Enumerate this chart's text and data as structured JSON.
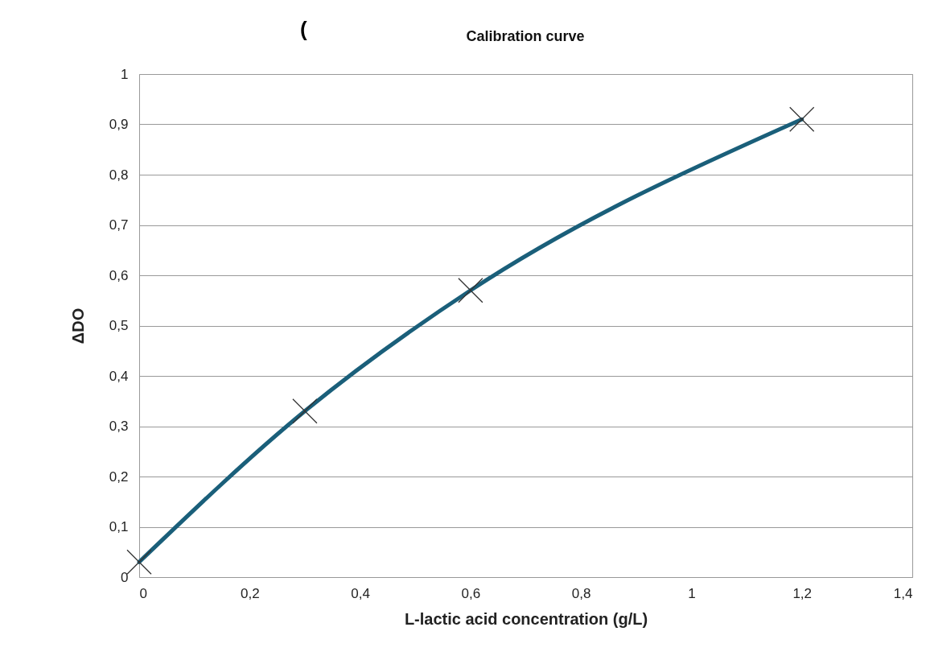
{
  "chart_data": {
    "type": "line",
    "title": "Calibration curve",
    "xlabel": "L-lactic acid concentration (g/L)",
    "ylabel": "ΔDO",
    "annotations": [
      "("
    ],
    "x": [
      0,
      0.3,
      0.6,
      1.2
    ],
    "series": [
      {
        "color": "#1a5f7a",
        "values": [
          0.03,
          0.33,
          0.57,
          0.91
        ]
      }
    ],
    "xlim": [
      0,
      1.4
    ],
    "xticks": [
      0,
      {
        "value": 0.2,
        "label": "0,2"
      },
      {
        "value": 0.4,
        "label": "0,4"
      },
      {
        "value": 0.6,
        "label": "0,6"
      },
      {
        "value": 0.8,
        "label": "0,8"
      },
      1,
      {
        "value": 1.2,
        "label": "1,2"
      },
      {
        "value": 1.4,
        "label": "1,4"
      }
    ],
    "ylim": [
      0,
      1
    ],
    "yticks": [
      0,
      {
        "value": 0.1,
        "label": "0,1"
      },
      {
        "value": 0.2,
        "label": "0,2"
      },
      {
        "value": 0.3,
        "label": "0,3"
      },
      {
        "value": 0.4,
        "label": "0,4"
      },
      {
        "value": 0.5,
        "label": "0,5"
      },
      {
        "value": 0.6,
        "label": "0,6"
      },
      {
        "value": 0.7,
        "label": "0,7"
      },
      {
        "value": 0.8,
        "label": "0,8"
      },
      {
        "value": 0.9,
        "label": "0,9"
      },
      1
    ],
    "grid": "y",
    "marker": "cross",
    "line_style": "solid"
  }
}
